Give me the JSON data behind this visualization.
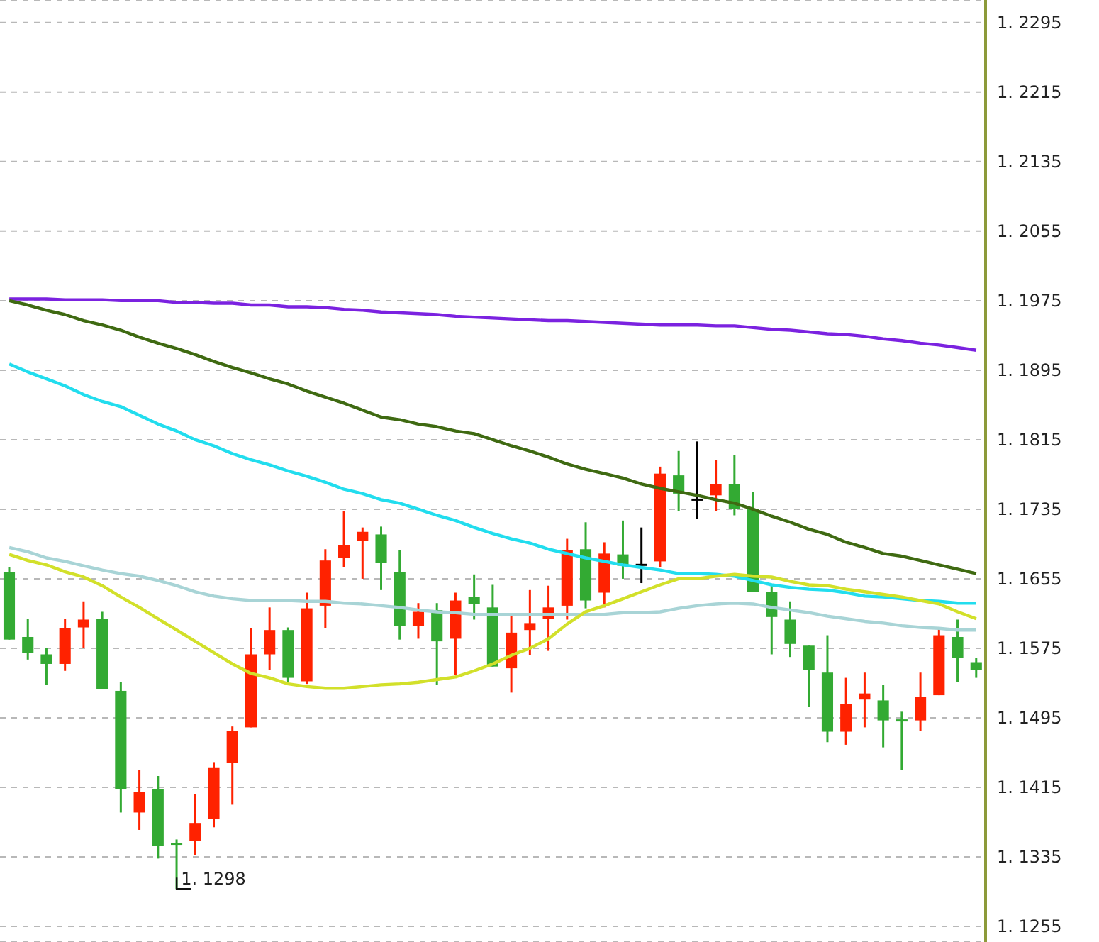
{
  "chart_data": {
    "type": "candlestick",
    "categories": [
      null,
      null,
      null,
      null,
      null,
      null,
      null,
      null,
      null,
      null,
      null,
      null,
      null,
      null,
      null,
      null,
      null,
      null,
      null,
      null,
      null,
      null,
      null,
      null,
      null,
      null,
      null,
      null,
      null,
      null,
      null,
      null,
      null,
      null,
      null,
      null,
      null,
      null,
      null,
      null,
      null,
      null,
      null,
      null,
      null,
      null,
      null,
      null,
      null,
      null,
      null,
      null,
      null
    ],
    "ohlc": [
      [
        1.1663,
        1.1668,
        1.1585,
        1.1585
      ],
      [
        1.1588,
        1.1609,
        1.1562,
        1.157
      ],
      [
        1.1568,
        1.1575,
        1.1533,
        1.1557
      ],
      [
        1.1557,
        1.1609,
        1.1549,
        1.1598
      ],
      [
        1.1599,
        1.1629,
        1.1575,
        1.1608
      ],
      [
        1.1609,
        1.1617,
        1.1528,
        1.1528
      ],
      [
        1.1526,
        1.1536,
        1.1386,
        1.1413
      ],
      [
        1.1386,
        1.1435,
        1.1366,
        1.141
      ],
      [
        1.1413,
        1.1428,
        1.1333,
        1.1348
      ],
      [
        1.135,
        1.1355,
        1.1298,
        1.135
      ],
      [
        1.1353,
        1.1407,
        1.1337,
        1.1374
      ],
      [
        1.1379,
        1.1444,
        1.1369,
        1.1438
      ],
      [
        1.1443,
        1.1485,
        1.1395,
        1.148
      ],
      [
        1.1484,
        1.1598,
        1.1484,
        1.1568
      ],
      [
        1.1568,
        1.1622,
        1.155,
        1.1596
      ],
      [
        1.1596,
        1.1599,
        1.1533,
        1.1541
      ],
      [
        1.1537,
        1.1639,
        1.1534,
        1.1621
      ],
      [
        1.1624,
        1.1689,
        1.1598,
        1.1676
      ],
      [
        1.1679,
        1.1733,
        1.1668,
        1.1694
      ],
      [
        1.1699,
        1.1714,
        1.1655,
        1.1709
      ],
      [
        1.1706,
        1.1715,
        1.1642,
        1.1673
      ],
      [
        1.1663,
        1.1688,
        1.1585,
        1.1601
      ],
      [
        1.1601,
        1.1627,
        1.1586,
        1.1617
      ],
      [
        1.1619,
        1.1627,
        1.1533,
        1.1583
      ],
      [
        1.1586,
        1.1639,
        1.1544,
        1.163
      ],
      [
        1.1634,
        1.166,
        1.1608,
        1.1626
      ],
      [
        1.1622,
        1.1648,
        1.1554,
        1.1554
      ],
      [
        1.1552,
        1.1613,
        1.1524,
        1.1593
      ],
      [
        1.1596,
        1.1642,
        1.1567,
        1.1604
      ],
      [
        1.1609,
        1.1647,
        1.1572,
        1.1622
      ],
      [
        1.1624,
        1.1701,
        1.1608,
        1.1688
      ],
      [
        1.1689,
        1.172,
        1.1621,
        1.163
      ],
      [
        1.1639,
        1.1697,
        1.1622,
        1.1684
      ],
      [
        1.1683,
        1.1722,
        1.1655,
        1.167
      ],
      [
        1.1671,
        1.1714,
        1.165,
        1.1671
      ],
      [
        1.1675,
        1.1784,
        1.1668,
        1.1776
      ],
      [
        1.1774,
        1.1802,
        1.1733,
        1.1753
      ],
      [
        1.1746,
        1.1813,
        1.1724,
        1.1746
      ],
      [
        1.1751,
        1.1792,
        1.1733,
        1.1764
      ],
      [
        1.1764,
        1.1797,
        1.1728,
        1.1735
      ],
      [
        1.1735,
        1.1755,
        1.164,
        1.164
      ],
      [
        1.164,
        1.1648,
        1.1568,
        1.1611
      ],
      [
        1.1608,
        1.1629,
        1.1565,
        1.158
      ],
      [
        1.1578,
        1.1578,
        1.1508,
        1.155
      ],
      [
        1.1547,
        1.159,
        1.1467,
        1.1479
      ],
      [
        1.1479,
        1.1541,
        1.1464,
        1.1511
      ],
      [
        1.1516,
        1.1547,
        1.1484,
        1.1523
      ],
      [
        1.1515,
        1.1533,
        1.1461,
        1.1492
      ],
      [
        1.1492,
        1.1502,
        1.1435,
        1.1492
      ],
      [
        1.1492,
        1.1547,
        1.148,
        1.1519
      ],
      [
        1.1521,
        1.1598,
        1.1521,
        1.159
      ],
      [
        1.1588,
        1.1608,
        1.1536,
        1.1564
      ],
      [
        1.1559,
        1.1564,
        1.1541,
        1.155
      ]
    ],
    "colors": [
      "#33aa33",
      "#33aa33",
      "#33aa33",
      "#ff2200",
      "#ff2200",
      "#33aa33",
      "#33aa33",
      "#ff2200",
      "#33aa33",
      "#33aa33",
      "#ff2200",
      "#ff2200",
      "#ff2200",
      "#ff2200",
      "#ff2200",
      "#33aa33",
      "#ff2200",
      "#ff2200",
      "#ff2200",
      "#ff2200",
      "#33aa33",
      "#33aa33",
      "#ff2200",
      "#33aa33",
      "#ff2200",
      "#33aa33",
      "#33aa33",
      "#ff2200",
      "#ff2200",
      "#ff2200",
      "#ff2200",
      "#33aa33",
      "#ff2200",
      "#33aa33",
      "#000000",
      "#ff2200",
      "#33aa33",
      "#000000",
      "#ff2200",
      "#33aa33",
      "#33aa33",
      "#33aa33",
      "#33aa33",
      "#33aa33",
      "#33aa33",
      "#ff2200",
      "#ff2200",
      "#33aa33",
      "#33aa33",
      "#ff2200",
      "#ff2200",
      "#33aa33",
      "#33aa33"
    ],
    "series": [
      {
        "type": "line",
        "color": "#7b22e0",
        "values": [
          1.1977,
          1.1977,
          1.1977,
          1.1976,
          1.1976,
          1.1976,
          1.1975,
          1.1975,
          1.1975,
          1.1973,
          1.1973,
          1.1972,
          1.1972,
          1.197,
          1.197,
          1.1968,
          1.1968,
          1.1967,
          1.1965,
          1.1964,
          1.1962,
          1.1961,
          1.196,
          1.1959,
          1.1957,
          1.1956,
          1.1955,
          1.1954,
          1.1953,
          1.1952,
          1.1952,
          1.1951,
          1.195,
          1.1949,
          1.1948,
          1.1947,
          1.1947,
          1.1947,
          1.1946,
          1.1946,
          1.1944,
          1.1942,
          1.1941,
          1.1939,
          1.1937,
          1.1936,
          1.1934,
          1.1931,
          1.1929,
          1.1926,
          1.1924,
          1.1921,
          1.1918
        ]
      },
      {
        "type": "line",
        "color": "#3f6a12",
        "values": [
          1.1975,
          1.197,
          1.1964,
          1.1959,
          1.1952,
          1.1947,
          1.1941,
          1.1933,
          1.1926,
          1.192,
          1.1913,
          1.1905,
          1.1898,
          1.1892,
          1.1885,
          1.1879,
          1.1871,
          1.1864,
          1.1857,
          1.1849,
          1.1841,
          1.1838,
          1.1833,
          1.183,
          1.1825,
          1.1822,
          1.1815,
          1.1808,
          1.1802,
          1.1795,
          1.1787,
          1.1781,
          1.1776,
          1.1771,
          1.1764,
          1.1759,
          1.1755,
          1.1751,
          1.1746,
          1.1742,
          1.1735,
          1.1727,
          1.172,
          1.1712,
          1.1706,
          1.1697,
          1.1691,
          1.1684,
          1.1681,
          1.1676,
          1.1671,
          1.1666,
          1.1661
        ]
      },
      {
        "type": "line",
        "color": "#22ddee",
        "values": [
          1.1902,
          1.1893,
          1.1885,
          1.1877,
          1.1867,
          1.1859,
          1.1853,
          1.1843,
          1.1833,
          1.1825,
          1.1815,
          1.1808,
          1.1799,
          1.1792,
          1.1786,
          1.1779,
          1.1773,
          1.1766,
          1.1758,
          1.1753,
          1.1746,
          1.1742,
          1.1735,
          1.1728,
          1.1722,
          1.1714,
          1.1707,
          1.1701,
          1.1696,
          1.1689,
          1.1684,
          1.1679,
          1.1675,
          1.1671,
          1.1668,
          1.1665,
          1.1661,
          1.1661,
          1.166,
          1.1658,
          1.1653,
          1.1648,
          1.1645,
          1.1643,
          1.1642,
          1.1639,
          1.1635,
          1.1634,
          1.1632,
          1.163,
          1.1629,
          1.1627,
          1.1627
        ]
      },
      {
        "type": "line",
        "color": "#a8d4d6",
        "values": [
          1.1691,
          1.1686,
          1.1679,
          1.1675,
          1.167,
          1.1665,
          1.1661,
          1.1658,
          1.1653,
          1.1647,
          1.164,
          1.1635,
          1.1632,
          1.163,
          1.163,
          1.163,
          1.1629,
          1.1629,
          1.1627,
          1.1626,
          1.1624,
          1.1622,
          1.1619,
          1.1617,
          1.1616,
          1.1614,
          1.1614,
          1.1614,
          1.1614,
          1.1614,
          1.1614,
          1.1614,
          1.1614,
          1.1616,
          1.1616,
          1.1617,
          1.1621,
          1.1624,
          1.1626,
          1.1627,
          1.1626,
          1.1622,
          1.1619,
          1.1616,
          1.1612,
          1.1609,
          1.1606,
          1.1604,
          1.1601,
          1.1599,
          1.1598,
          1.1596,
          1.1596
        ]
      },
      {
        "type": "line",
        "color": "#d2e02a",
        "values": [
          1.1683,
          1.1676,
          1.1671,
          1.1663,
          1.1657,
          1.1647,
          1.1634,
          1.1622,
          1.1609,
          1.1596,
          1.1583,
          1.157,
          1.1557,
          1.1546,
          1.1541,
          1.1534,
          1.1531,
          1.1529,
          1.1529,
          1.1531,
          1.1533,
          1.1534,
          1.1536,
          1.1539,
          1.1542,
          1.1549,
          1.1557,
          1.1567,
          1.1575,
          1.1586,
          1.1603,
          1.1617,
          1.1624,
          1.1632,
          1.164,
          1.1648,
          1.1655,
          1.1655,
          1.1658,
          1.166,
          1.1658,
          1.1657,
          1.1652,
          1.1648,
          1.1647,
          1.1643,
          1.164,
          1.1637,
          1.1634,
          1.163,
          1.1626,
          1.1617,
          1.1609
        ]
      }
    ],
    "ylim": [
      1.1237,
      1.2321
    ],
    "yticks": [
      1.2295,
      1.2215,
      1.2135,
      1.2055,
      1.1975,
      1.1895,
      1.1815,
      1.1735,
      1.1655,
      1.1575,
      1.1495,
      1.1415,
      1.1335,
      1.1255
    ],
    "grid": "y",
    "tick_labels": "y",
    "annotations": [
      "1. 1298"
    ]
  }
}
